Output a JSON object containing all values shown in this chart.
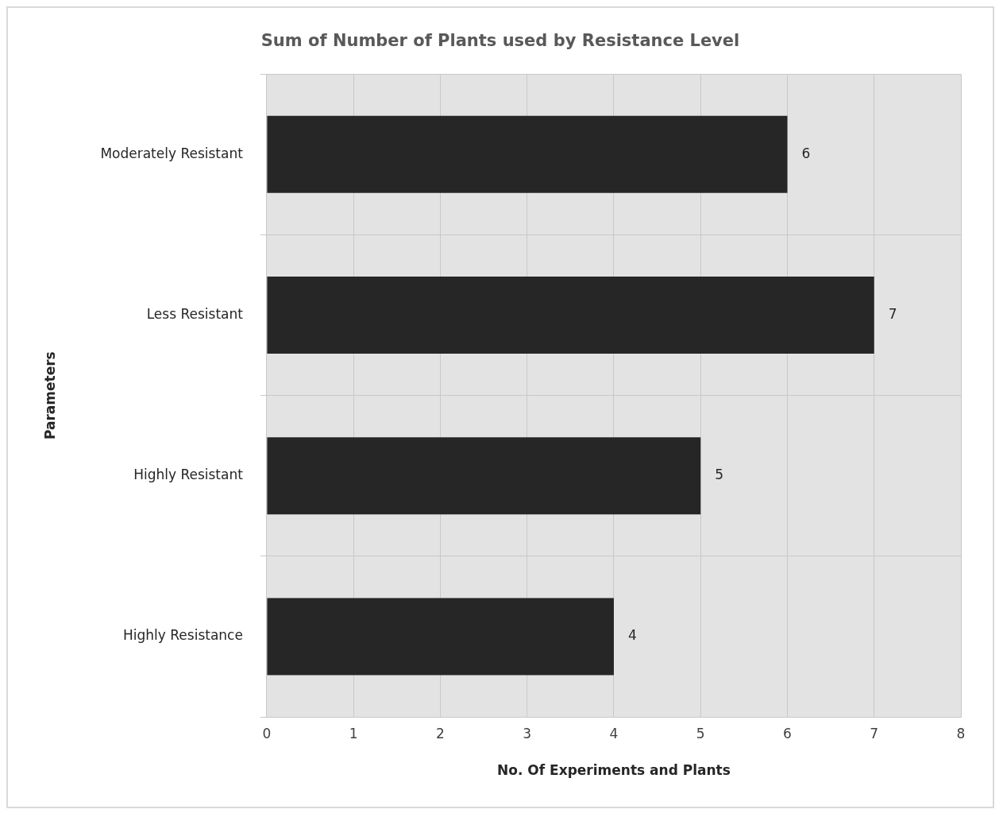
{
  "chart_data": {
    "type": "bar",
    "orientation": "horizontal",
    "title": "Sum of Number of Plants used by Resistance Level",
    "xlabel": "No. Of Experiments and Plants",
    "ylabel": "Parameters",
    "categories": [
      "Moderately Resistant",
      "Less Resistant",
      "Highly Resistant",
      "Highly Resistance"
    ],
    "values": [
      6,
      7,
      5,
      4
    ],
    "color": "#262626",
    "xlim": [
      0,
      8
    ],
    "xticks": [
      0,
      1,
      2,
      3,
      4,
      5,
      6,
      7,
      8
    ],
    "grid": true,
    "data_labels": true
  }
}
